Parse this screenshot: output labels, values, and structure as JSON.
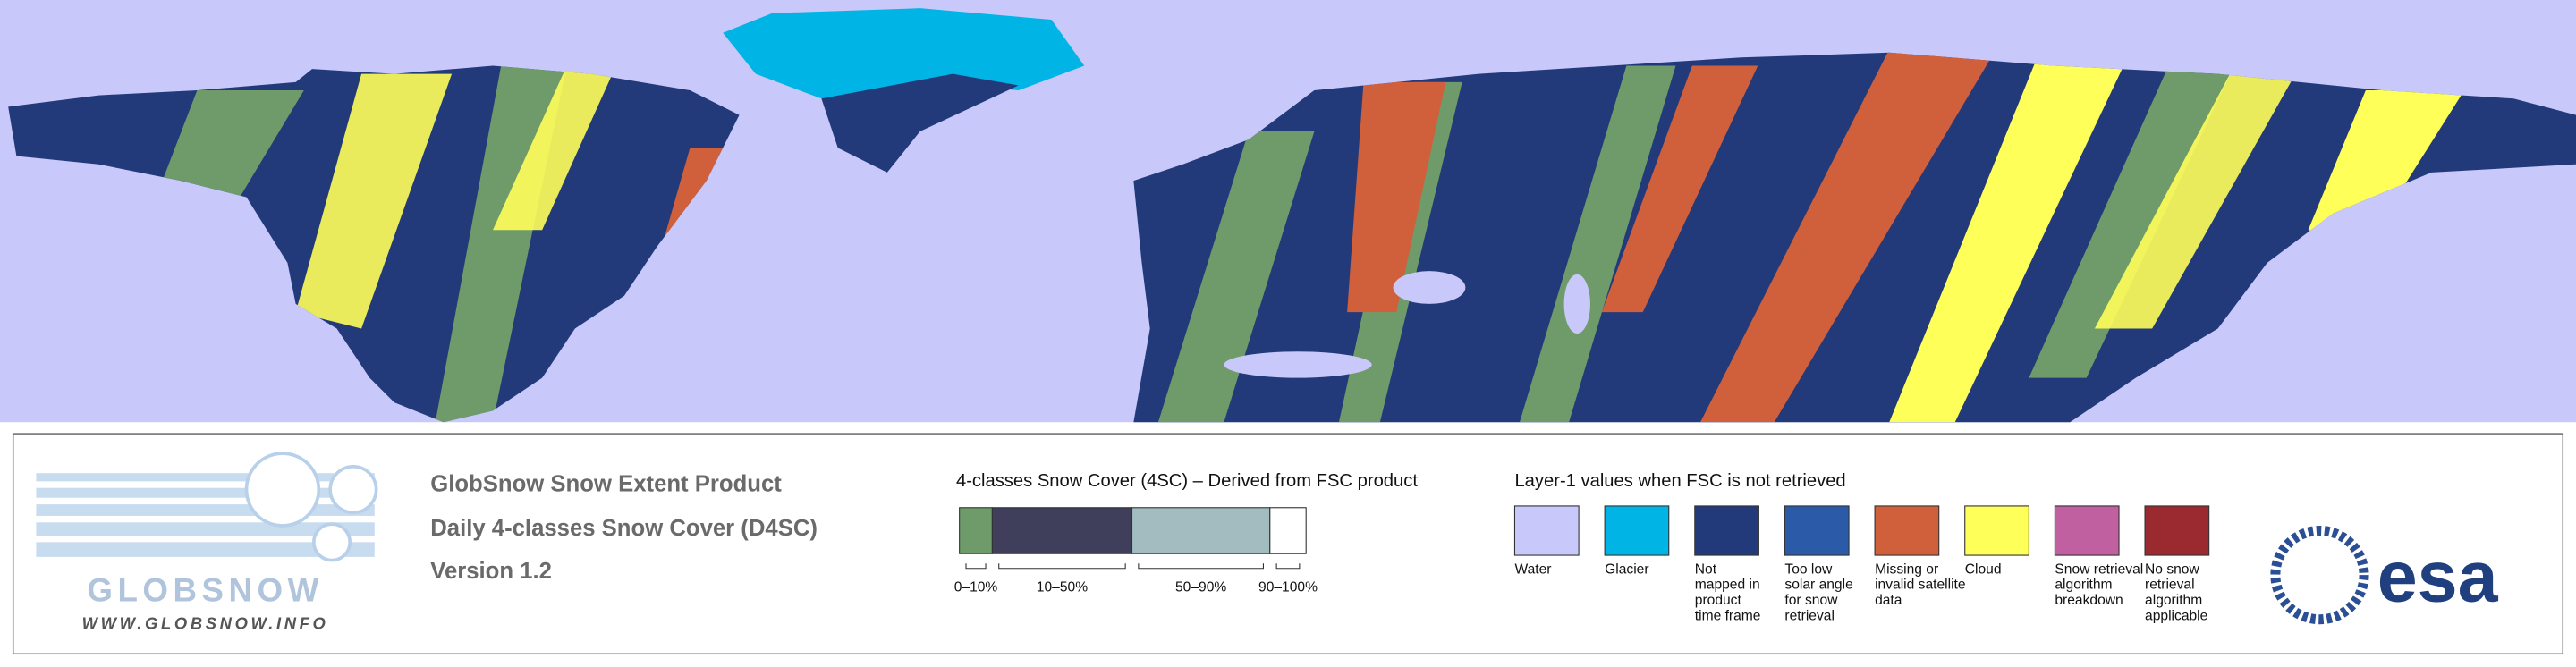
{
  "header": {
    "logo_text": "GLOBSNOW",
    "logo_url": "WWW.GLOBSNOW.INFO",
    "title": "GlobSnow Snow Extent Product",
    "subtitle": "Daily 4-classes Snow Cover (D4SC)",
    "version": "Version 1.2",
    "agency": "esa"
  },
  "legend_4sc": {
    "title": "4-classes Snow Cover (4SC) – Derived from FSC product",
    "classes": [
      {
        "label": "0–10%",
        "color": "#6f9b6a"
      },
      {
        "label": "10–50%",
        "color": "#3f3f5c"
      },
      {
        "label": "50–90%",
        "color": "#a2bcc0"
      },
      {
        "label": "90–100%",
        "color": "#ffffff"
      }
    ]
  },
  "legend_layer1": {
    "title": "Layer-1 values when FSC is not retrieved",
    "items": [
      {
        "label": [
          "Water"
        ],
        "color": "#c8c8fa"
      },
      {
        "label": [
          "Glacier"
        ],
        "color": "#00b4e6"
      },
      {
        "label": [
          "Not",
          "mapped in",
          "product",
          "time frame"
        ],
        "color": "#233a7a"
      },
      {
        "label": [
          "Too low",
          "solar angle",
          "for snow",
          "retrieval"
        ],
        "color": "#2a5aa8"
      },
      {
        "label": [
          "Missing or",
          "invalid satellite",
          "data"
        ],
        "color": "#d0603c"
      },
      {
        "label": [
          "Cloud"
        ],
        "color": "#ffff5a"
      },
      {
        "label": [
          "Snow retrieval",
          "algorithm",
          "breakdown"
        ],
        "color": "#c060a0"
      },
      {
        "label": [
          "No snow",
          "retrieval",
          "algorithm",
          "applicable"
        ],
        "color": "#9a2a30"
      }
    ]
  }
}
